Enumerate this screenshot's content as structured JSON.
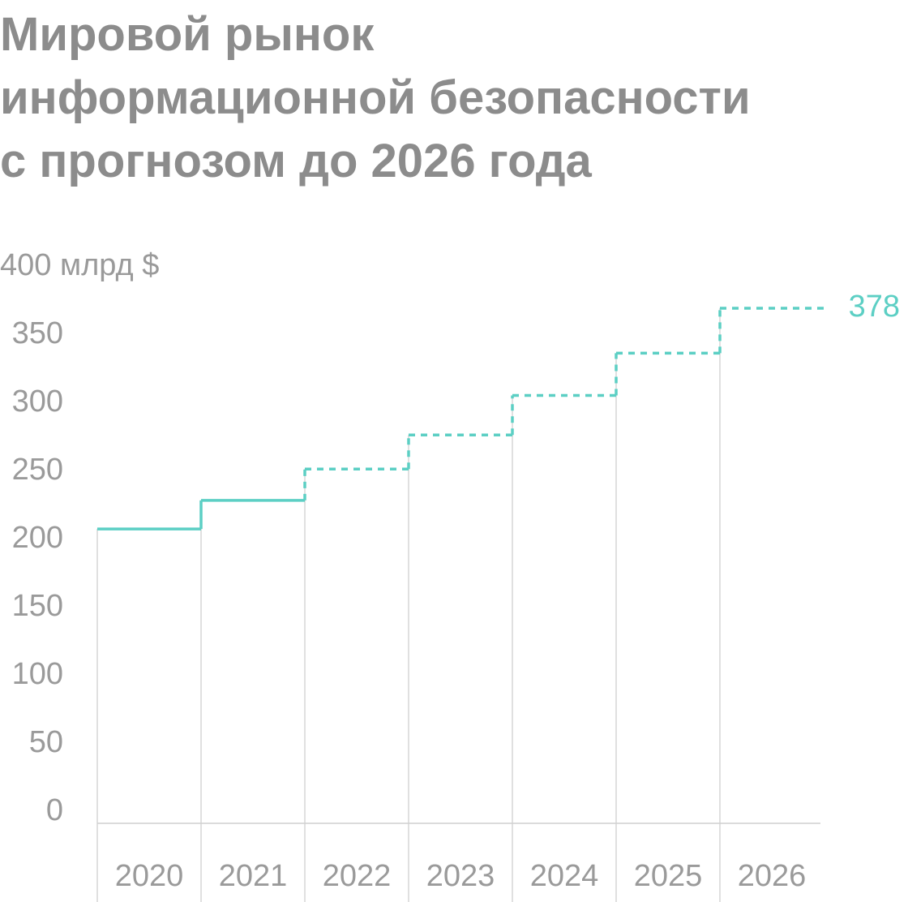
{
  "chart_data": {
    "type": "step",
    "title": [
      "Мировой рынок",
      "информационной безопасности",
      "с прогнозом до 2026 года"
    ],
    "categories": [
      "2020",
      "2021",
      "2022",
      "2023",
      "2024",
      "2025",
      "2026"
    ],
    "series": [
      {
        "color": "#5ccfc4",
        "values": [
          216,
          237,
          260,
          285,
          314,
          345,
          378
        ],
        "dashed": [
          false,
          false,
          true,
          true,
          true,
          true,
          true
        ]
      }
    ],
    "ylim": [
      0,
      400
    ],
    "yticks": [
      0,
      50,
      100,
      150,
      200,
      250,
      300,
      350,
      {
        "value": 400,
        "label": "400 млрд $"
      }
    ],
    "grid": true
  }
}
